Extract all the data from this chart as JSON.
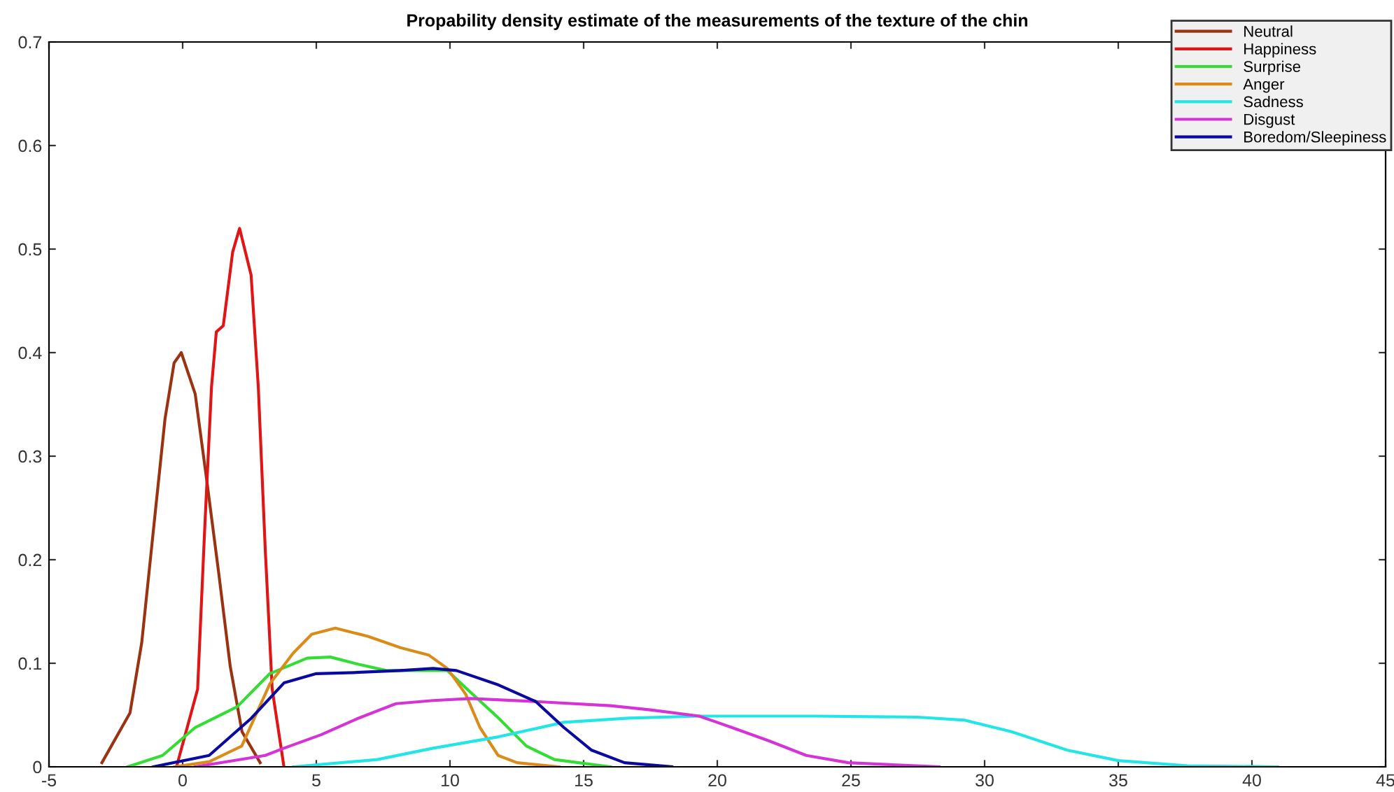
{
  "chart_data": {
    "type": "line",
    "title": "Propability density estimate of the measurements of the texture of the chin",
    "xlim": [
      -5,
      45
    ],
    "xticks": [
      -5,
      0,
      5,
      10,
      15,
      20,
      25,
      30,
      35,
      40,
      45
    ],
    "ylim": [
      0,
      0.7
    ],
    "yticks": [
      0,
      0.1,
      0.2,
      0.3,
      0.4,
      0.5,
      0.6,
      0.7
    ],
    "grid": false,
    "legend": "top right",
    "marker": "none",
    "line_style": "solid",
    "series": [
      {
        "name": "Neutral",
        "color": "#993311",
        "x": [
          -3.02,
          -1.97,
          -1.53,
          -1.1,
          -0.66,
          -0.32,
          -0.05,
          0.47,
          0.9,
          1.35,
          1.78,
          2.22,
          2.9
        ],
        "values": [
          0.004,
          0.052,
          0.12,
          0.227,
          0.336,
          0.39,
          0.4,
          0.36,
          0.277,
          0.187,
          0.097,
          0.034,
          0.004
        ]
      },
      {
        "name": "Happiness",
        "color": "#e01515",
        "x": [
          -0.23,
          0.56,
          0.82,
          1.08,
          1.26,
          1.52,
          1.87,
          2.13,
          2.56,
          2.83,
          3.09,
          3.35,
          3.79
        ],
        "values": [
          0,
          0.075,
          0.227,
          0.367,
          0.42,
          0.426,
          0.497,
          0.52,
          0.475,
          0.367,
          0.21,
          0.075,
          0
        ]
      },
      {
        "name": "Surprise",
        "color": "#33dd33",
        "x": [
          -2.06,
          -0.75,
          0.47,
          2.04,
          3.26,
          4.66,
          5.53,
          6.58,
          7.62,
          9.02,
          9.9,
          10.77,
          11.82,
          12.86,
          13.91,
          16.0
        ],
        "values": [
          0,
          0.011,
          0.038,
          0.058,
          0.09,
          0.105,
          0.106,
          0.099,
          0.093,
          0.093,
          0.093,
          0.072,
          0.047,
          0.02,
          0.007,
          0
        ]
      },
      {
        "name": "Anger",
        "color": "#d98c1a",
        "x": [
          -0.3,
          1.0,
          2.21,
          3.26,
          4.14,
          4.83,
          5.71,
          6.93,
          8.15,
          9.2,
          9.9,
          10.59,
          11.12,
          11.8,
          12.51,
          14.08
        ],
        "values": [
          0,
          0.005,
          0.02,
          0.08,
          0.11,
          0.128,
          0.134,
          0.126,
          0.115,
          0.108,
          0.095,
          0.07,
          0.038,
          0.011,
          0.004,
          0
        ]
      },
      {
        "name": "Sadness",
        "color": "#22e5e5",
        "x": [
          4.14,
          7.28,
          9.37,
          11.82,
          14.26,
          16.7,
          19.32,
          23.7,
          27.5,
          29.27,
          31.0,
          33.1,
          35.0,
          37.6,
          40.96
        ],
        "values": [
          0,
          0.007,
          0.018,
          0.029,
          0.043,
          0.047,
          0.049,
          0.049,
          0.048,
          0.045,
          0.034,
          0.016,
          0.006,
          0.001,
          0
        ]
      },
      {
        "name": "Disgust",
        "color": "#d633d6",
        "x": [
          0.47,
          3.09,
          3.79,
          5.18,
          6.58,
          7.98,
          9.37,
          10.77,
          13.21,
          16.0,
          17.5,
          19.32,
          20.54,
          21.94,
          23.33,
          24.9,
          28.3
        ],
        "values": [
          0,
          0.011,
          0.018,
          0.031,
          0.047,
          0.061,
          0.064,
          0.066,
          0.063,
          0.059,
          0.055,
          0.049,
          0.038,
          0.025,
          0.011,
          0.004,
          0
        ]
      },
      {
        "name": "Boredom/Sleepiness",
        "color": "#0a0aa0",
        "x": [
          -1.1,
          0.99,
          2.57,
          3.79,
          5.0,
          6.4,
          8.15,
          9.37,
          10.24,
          11.82,
          13.21,
          14.26,
          15.3,
          16.53,
          18.3
        ],
        "values": [
          0,
          0.011,
          0.047,
          0.081,
          0.09,
          0.091,
          0.093,
          0.095,
          0.093,
          0.079,
          0.063,
          0.038,
          0.016,
          0.004,
          0
        ]
      }
    ]
  }
}
